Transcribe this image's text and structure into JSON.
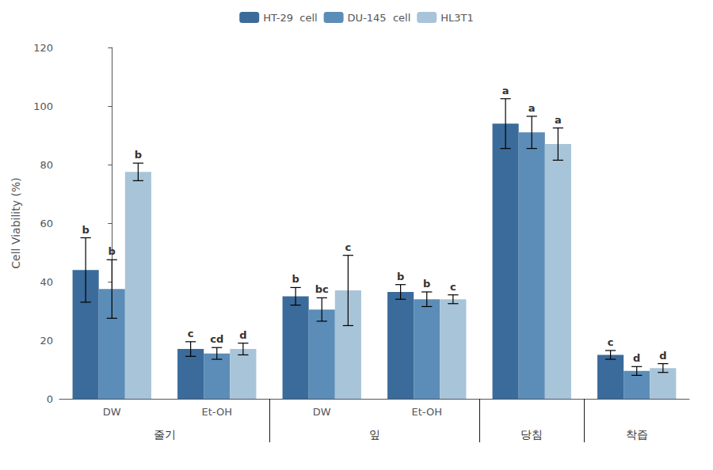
{
  "chart_data": {
    "type": "bar",
    "categories": [
      "DW",
      "Et-OH",
      "DW",
      "Et-OH",
      null,
      null
    ],
    "groups": [
      {
        "label": "줄기",
        "size": 2
      },
      {
        "label": "잎",
        "size": 2
      },
      {
        "label": "당침",
        "size": 1
      },
      {
        "label": "착즙",
        "size": 1
      }
    ],
    "ylabel": "Cell Viability (%)",
    "ylim": [
      0,
      120
    ],
    "yticks": [
      0,
      20,
      40,
      60,
      80,
      100,
      120
    ],
    "grid": false,
    "legend": "top",
    "series": [
      {
        "name": "HT-29  cell",
        "color": "#3a6b9a",
        "values": [
          44.0,
          17.0,
          35.0,
          36.5,
          94.0,
          15.0
        ],
        "errors": [
          11.0,
          2.5,
          3.0,
          2.5,
          8.5,
          1.5
        ],
        "letters": [
          "b",
          "c",
          "b",
          "b",
          "a",
          "c"
        ]
      },
      {
        "name": "DU-145  cell",
        "color": "#5b8db8",
        "values": [
          37.5,
          15.5,
          30.5,
          34.0,
          91.0,
          9.5
        ],
        "errors": [
          10.0,
          2.0,
          4.0,
          2.5,
          5.5,
          1.5
        ],
        "letters": [
          "b",
          "cd",
          "bc",
          "b",
          "a",
          "d"
        ]
      },
      {
        "name": "HL3T1",
        "color": "#a8c4d8",
        "values": [
          77.5,
          17.0,
          37.0,
          34.0,
          87.0,
          10.5
        ],
        "errors": [
          3.0,
          2.0,
          12.0,
          1.5,
          5.5,
          1.5
        ],
        "letters": [
          "b",
          "d",
          "c",
          "c",
          "a",
          "d"
        ]
      }
    ]
  }
}
